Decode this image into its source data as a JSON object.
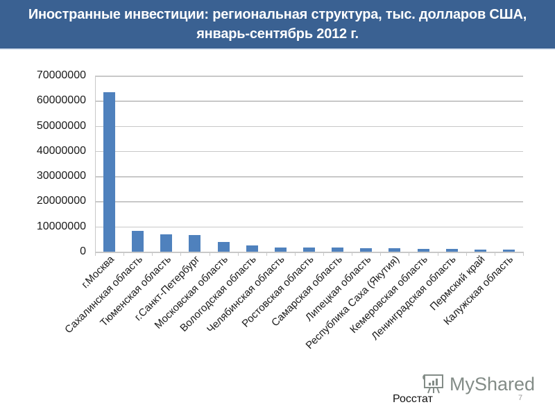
{
  "header": {
    "title": "Иностранные инвестиции: региональная структура, тыс. долларов США, январь-сентябрь 2012 г."
  },
  "chart_data": {
    "type": "bar",
    "title": "Иностранные инвестиции: региональная структура, тыс. долларов США, январь-сентябрь 2012 г.",
    "xlabel": "",
    "ylabel": "",
    "ylim": [
      0,
      70000000
    ],
    "yticks": [
      "0",
      "10000000",
      "20000000",
      "30000000",
      "40000000",
      "50000000",
      "60000000",
      "70000000"
    ],
    "grid": true,
    "legend": null,
    "categories": [
      "г.Москва",
      "Сахалинская область",
      "Тюменская область",
      "г.Санкт-Петербург",
      "Московская область",
      "Вологодская область",
      "Челябинская область",
      "Ростовская область",
      "Самарская область",
      "Липецкая область",
      "Республика Саха (Якутия)",
      "Кемеровская область",
      "Ленинградская область",
      "Пермский край",
      "Калужская область"
    ],
    "values": [
      63400000,
      8300000,
      7000000,
      6500000,
      3900000,
      2500000,
      1700000,
      1700000,
      1600000,
      1500000,
      1400000,
      1100000,
      1000000,
      800000,
      800000
    ],
    "bar_color": "#4f81bd"
  },
  "footer": {
    "source": "Росстат",
    "page_number": "7",
    "watermark": "MyShared"
  }
}
